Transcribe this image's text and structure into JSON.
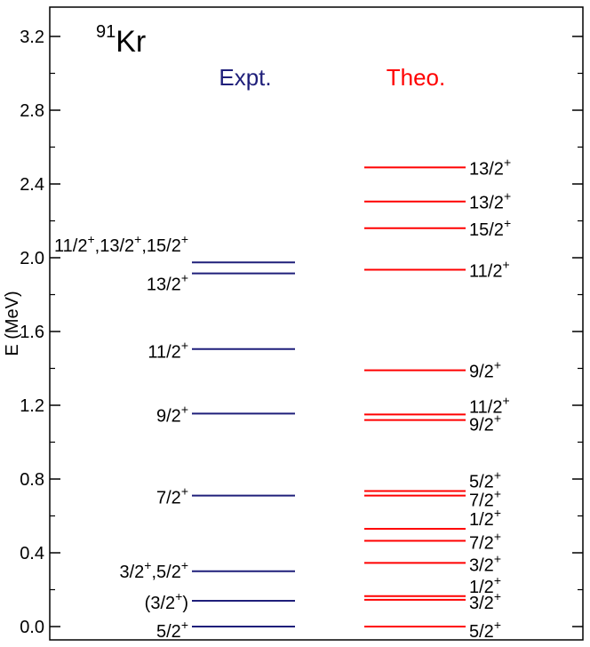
{
  "chart_data": {
    "type": "level-scheme",
    "ylabel": "E (MeV)",
    "ylim": [
      -0.1,
      3.35
    ],
    "yticks": [
      0.0,
      0.4,
      0.8,
      1.2,
      1.6,
      2.0,
      2.4,
      2.8,
      3.2
    ],
    "ytick_labels": [
      "0.0",
      "0.4",
      "0.8",
      "1.2",
      "1.6",
      "2.0",
      "2.4",
      "2.8",
      "3.2"
    ],
    "nucleus": {
      "mass": "91",
      "symbol": "Kr"
    },
    "colors": {
      "expt": "#1f1f7a",
      "theo": "#ff0000",
      "axis": "#000000"
    },
    "series": [
      {
        "name": "Expt.",
        "color": "#1f1f7a",
        "levels": [
          {
            "energy": 0.0,
            "label": "5/2",
            "sup": "+"
          },
          {
            "energy": 0.14,
            "label": "(3/2",
            "sup": "+",
            "after": ")"
          },
          {
            "energy": 0.3,
            "label": "3/2",
            "sup": "+",
            "parts": [
              [
                "3/2",
                "+"
              ],
              [
                ",5/2",
                "+"
              ]
            ]
          },
          {
            "energy": 0.71,
            "label": "7/2",
            "sup": "+"
          },
          {
            "energy": 1.155,
            "label": "9/2",
            "sup": "+"
          },
          {
            "energy": 1.505,
            "label": "11/2",
            "sup": "+"
          },
          {
            "energy": 1.915,
            "label": "13/2",
            "sup": "+"
          },
          {
            "energy": 1.975,
            "label": "11/2",
            "sup": "+",
            "parts": [
              [
                "11/2",
                "+"
              ],
              [
                ",13/2",
                "+"
              ],
              [
                ",15/2",
                "+"
              ]
            ]
          }
        ]
      },
      {
        "name": "Theo.",
        "color": "#ff0000",
        "levels": [
          {
            "energy": 0.0,
            "label": "5/2",
            "sup": "+"
          },
          {
            "energy": 0.145,
            "label": "3/2",
            "sup": "+"
          },
          {
            "energy": 0.165,
            "label": "1/2",
            "sup": "+"
          },
          {
            "energy": 0.345,
            "label": "3/2",
            "sup": "+"
          },
          {
            "energy": 0.465,
            "label": "7/2",
            "sup": "+"
          },
          {
            "energy": 0.53,
            "label": "1/2",
            "sup": "+"
          },
          {
            "energy": 0.71,
            "label": "7/2",
            "sup": "+"
          },
          {
            "energy": 0.735,
            "label": "5/2",
            "sup": "+"
          },
          {
            "energy": 1.12,
            "label": "9/2",
            "sup": "+"
          },
          {
            "energy": 1.15,
            "label": "11/2",
            "sup": "+"
          },
          {
            "energy": 1.39,
            "label": "9/2",
            "sup": "+"
          },
          {
            "energy": 1.935,
            "label": "11/2",
            "sup": "+"
          },
          {
            "energy": 2.16,
            "label": "15/2",
            "sup": "+"
          },
          {
            "energy": 2.305,
            "label": "13/2",
            "sup": "+"
          },
          {
            "energy": 2.49,
            "label": "13/2",
            "sup": "+"
          }
        ]
      }
    ]
  }
}
